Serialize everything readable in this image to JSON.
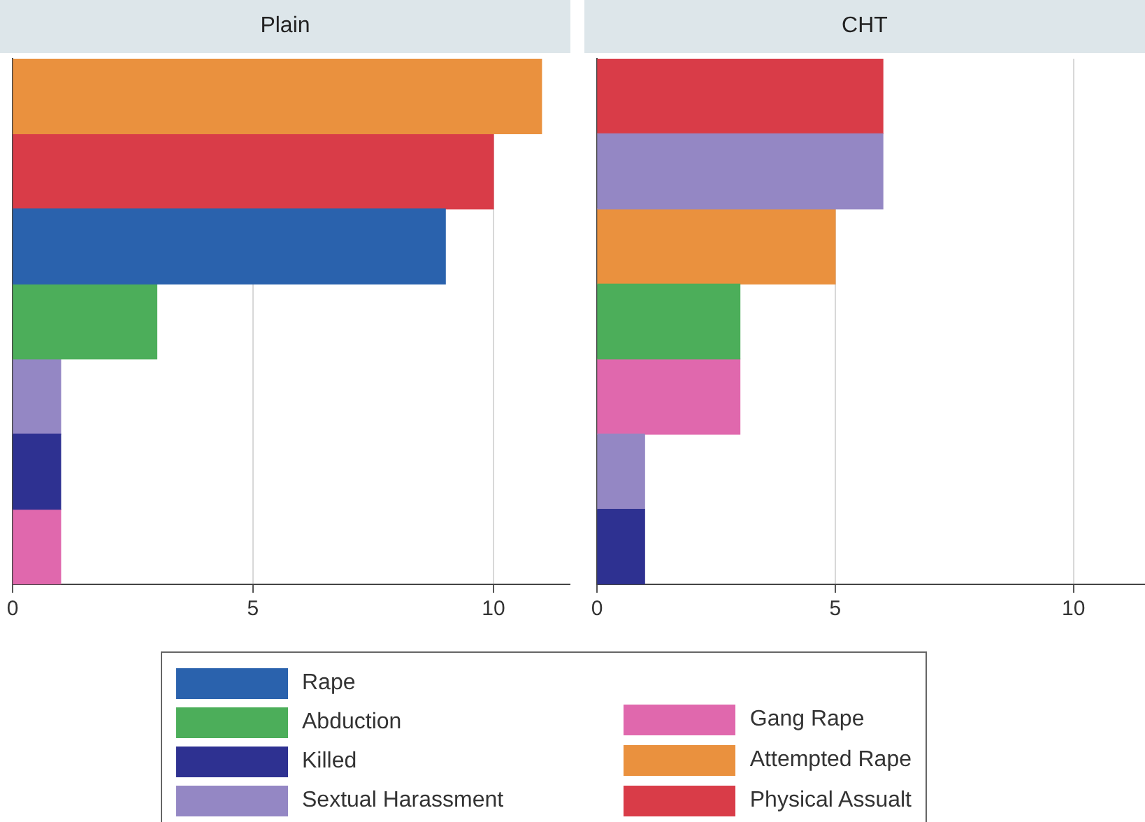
{
  "chart_data": [
    {
      "type": "bar",
      "title": "Plain",
      "orientation": "horizontal",
      "categories": [
        null,
        null,
        null,
        null,
        null,
        null,
        null
      ],
      "xlim": [
        0,
        11.6
      ],
      "xticks": [
        0,
        5,
        10
      ],
      "grid": "x",
      "legend": "bottom",
      "series": [
        {
          "name": "Rape",
          "color": "#2a62ad",
          "values": [
            null,
            null,
            9,
            null,
            null,
            null,
            null
          ]
        },
        {
          "name": "Abduction",
          "color": "#4cae5a",
          "values": [
            null,
            null,
            null,
            3,
            null,
            null,
            null
          ]
        },
        {
          "name": "Killed",
          "color": "#2e3191",
          "values": [
            null,
            null,
            null,
            null,
            null,
            1,
            null
          ]
        },
        {
          "name": "Sextual Harassment",
          "color": "#9487c4",
          "values": [
            null,
            null,
            null,
            null,
            1,
            null,
            null
          ]
        },
        {
          "name": "Gang Rape",
          "color": "#e068ad",
          "values": [
            null,
            null,
            null,
            null,
            null,
            null,
            1
          ]
        },
        {
          "name": "Attempted Rape",
          "color": "#ea913e",
          "values": [
            11,
            null,
            null,
            null,
            null,
            null,
            null
          ]
        },
        {
          "name": "Physical Assualt",
          "color": "#d93c48",
          "values": [
            null,
            10,
            null,
            null,
            null,
            null,
            null
          ]
        }
      ]
    },
    {
      "type": "bar",
      "title": "CHT",
      "orientation": "horizontal",
      "categories": [
        null,
        null,
        null,
        null,
        null,
        null,
        null
      ],
      "xlim": [
        0,
        11.5
      ],
      "xticks": [
        0,
        5,
        10
      ],
      "grid": "x",
      "legend": false,
      "series": [
        {
          "color": "#4cae5a",
          "values": [
            null,
            null,
            null,
            3,
            null,
            null,
            null
          ]
        },
        {
          "color": "#2e3191",
          "values": [
            null,
            null,
            null,
            null,
            null,
            null,
            1
          ]
        },
        {
          "color": "#9487c4",
          "values": [
            null,
            6,
            null,
            null,
            null,
            1,
            null
          ]
        },
        {
          "color": "#e068ad",
          "values": [
            null,
            null,
            null,
            null,
            3,
            null,
            null
          ]
        },
        {
          "color": "#ea913e",
          "values": [
            null,
            null,
            5,
            null,
            null,
            null,
            null
          ]
        },
        {
          "color": "#d93c48",
          "values": [
            6,
            null,
            null,
            null,
            null,
            null,
            null
          ]
        }
      ]
    }
  ]
}
